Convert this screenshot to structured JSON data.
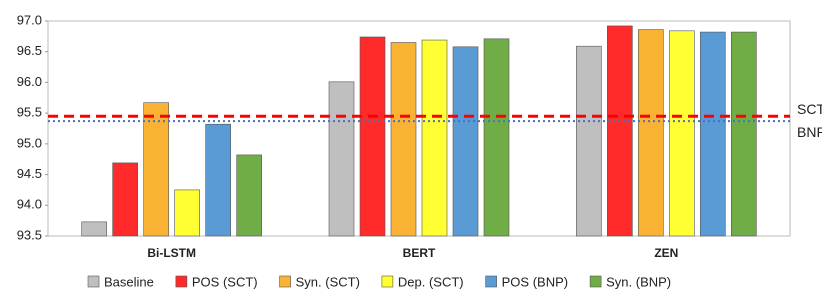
{
  "chart_data": {
    "type": "bar",
    "categories": [
      "Bi-LSTM",
      "BERT",
      "ZEN"
    ],
    "series": [
      {
        "name": "Baseline",
        "color": "#bfbfbf",
        "values": [
          93.73,
          96.01,
          96.59
        ]
      },
      {
        "name": "POS (SCT)",
        "color": "#ff2b2b",
        "values": [
          94.69,
          96.74,
          96.92
        ]
      },
      {
        "name": "Syn. (SCT)",
        "color": "#f9b233",
        "values": [
          95.67,
          96.65,
          96.86
        ]
      },
      {
        "name": "Dep. (SCT)",
        "color": "#ffff33",
        "values": [
          94.25,
          96.69,
          96.84
        ]
      },
      {
        "name": "POS (BNP)",
        "color": "#5b9bd5",
        "values": [
          95.32,
          96.58,
          96.82
        ]
      },
      {
        "name": "Syn. (BNP)",
        "color": "#70ad47",
        "values": [
          94.82,
          96.71,
          96.82
        ]
      }
    ],
    "reference_lines": [
      {
        "name": "SCT",
        "value": 95.45,
        "color": "#ff0000",
        "style": "dashed"
      },
      {
        "name": "BNP",
        "value": 95.37,
        "color": "#4472c4",
        "style": "dotted"
      }
    ],
    "ylim": [
      93.5,
      97.0
    ],
    "yticks": [
      93.5,
      {
        "value": 94.0,
        "label": "94.0"
      },
      94.5,
      {
        "value": 95.0,
        "label": "95.0"
      },
      95.5,
      {
        "value": 96.0,
        "label": "96.0"
      },
      96.5,
      {
        "value": 97.0,
        "label": "97.0"
      }
    ],
    "grid": false,
    "legend": "bottom"
  }
}
